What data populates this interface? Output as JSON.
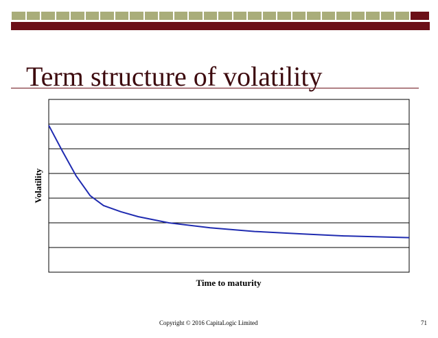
{
  "slide": {
    "title": "Term structure of volatility",
    "footer_copyright": "Copyright © 2016 CapitaLogic Limited",
    "page_number": "71"
  },
  "colors": {
    "accent_dark_red": "#6b0f17",
    "tile_olive": "#a9ad7a",
    "curve_blue": "#1f2bb0"
  },
  "chart_data": {
    "type": "line",
    "title": "",
    "xlabel": "Time to maturity",
    "ylabel": "Volatility",
    "xlim": [
      0,
      10
    ],
    "ylim": [
      0,
      7
    ],
    "grid": "horizontal",
    "tick_labels_shown": false,
    "series": [
      {
        "values": [
          {
            "x": 0.0,
            "y": 5.95
          },
          {
            "x": 0.38,
            "y": 4.9
          },
          {
            "x": 0.76,
            "y": 3.9
          },
          {
            "x": 1.15,
            "y": 3.1
          },
          {
            "x": 1.52,
            "y": 2.7
          },
          {
            "x": 2.0,
            "y": 2.45
          },
          {
            "x": 2.48,
            "y": 2.25
          },
          {
            "x": 3.33,
            "y": 2.0
          },
          {
            "x": 4.48,
            "y": 1.8
          },
          {
            "x": 5.71,
            "y": 1.65
          },
          {
            "x": 7.05,
            "y": 1.55
          },
          {
            "x": 8.19,
            "y": 1.47
          },
          {
            "x": 10.0,
            "y": 1.4
          }
        ]
      }
    ]
  }
}
